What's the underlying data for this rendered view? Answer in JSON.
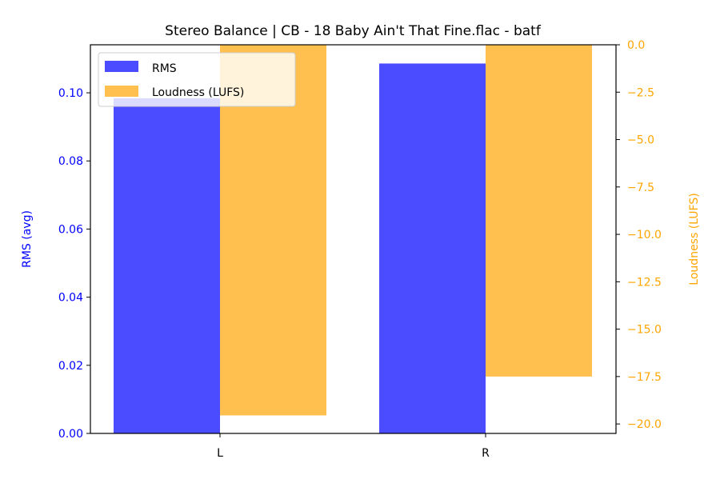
{
  "chart_data": {
    "type": "bar",
    "title": "Stereo Balance | CB - 18 Baby Ain't That Fine.flac - batf",
    "categories": [
      "L",
      "R"
    ],
    "series": [
      {
        "name": "RMS",
        "axis": "left",
        "values": [
          0.0984,
          0.1086
        ],
        "color": "#4b4bff"
      },
      {
        "name": "Loudness (LUFS)",
        "axis": "right",
        "values": [
          -19.55,
          -17.5
        ],
        "color": "#ffc04f"
      }
    ],
    "ylabel_left": "RMS (avg)",
    "ylabel_right": "Loudness (LUFS)",
    "ylim_left": [
      0,
      0.1141
    ],
    "ylim_right": [
      -20.5,
      0
    ],
    "yticks_left": [
      "0.00",
      "0.02",
      "0.04",
      "0.06",
      "0.08",
      "0.10"
    ],
    "yticks_right": [
      "0.0",
      "−2.5",
      "−5.0",
      "−7.5",
      "−10.0",
      "−12.5",
      "−15.0",
      "−17.5",
      "−20.0"
    ],
    "left_axis_color": "#0000ff",
    "right_axis_color": "#ffa500",
    "legend": "top-left",
    "grid": false
  }
}
